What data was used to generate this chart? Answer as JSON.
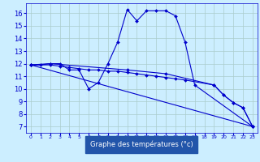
{
  "background_color": "#cceeff",
  "grid_color": "#aacccc",
  "line_color": "#0000cc",
  "xlabel": "Graphe des températures (°c)",
  "xlabel_bg": "#2255aa",
  "xlabel_fg": "#ffffff",
  "xlim": [
    -0.5,
    23.5
  ],
  "ylim": [
    6.5,
    16.8
  ],
  "yticks": [
    7,
    8,
    9,
    10,
    11,
    12,
    13,
    14,
    15,
    16
  ],
  "xticks": [
    0,
    1,
    2,
    3,
    4,
    5,
    6,
    7,
    8,
    9,
    10,
    11,
    12,
    13,
    14,
    15,
    16,
    17,
    18,
    19,
    20,
    21,
    22,
    23
  ],
  "series": [
    {
      "x": [
        0,
        1,
        2,
        3,
        4,
        5,
        6,
        7,
        8,
        9,
        10,
        11,
        12,
        13,
        14,
        15,
        16,
        17,
        23
      ],
      "y": [
        11.9,
        11.9,
        12.0,
        12.0,
        11.5,
        11.5,
        10.0,
        10.5,
        12.0,
        13.7,
        16.3,
        15.4,
        16.2,
        16.2,
        16.2,
        15.8,
        13.7,
        10.3,
        7.0
      ]
    },
    {
      "x": [
        0,
        2,
        3,
        4,
        5,
        6,
        7,
        8,
        9,
        10,
        11,
        12,
        13,
        14,
        15,
        16,
        19,
        20,
        21,
        22,
        23
      ],
      "y": [
        11.9,
        11.9,
        11.8,
        11.7,
        11.6,
        11.5,
        11.5,
        11.4,
        11.4,
        11.3,
        11.2,
        11.1,
        11.0,
        10.9,
        10.8,
        10.7,
        10.3,
        9.5,
        8.9,
        8.5,
        7.0
      ]
    },
    {
      "x": [
        0,
        23
      ],
      "y": [
        11.9,
        7.0
      ]
    },
    {
      "x": [
        0,
        2,
        10,
        14,
        19,
        20,
        21,
        22,
        23
      ],
      "y": [
        11.9,
        12.0,
        11.5,
        11.2,
        10.3,
        9.5,
        8.9,
        8.5,
        7.0
      ]
    }
  ]
}
